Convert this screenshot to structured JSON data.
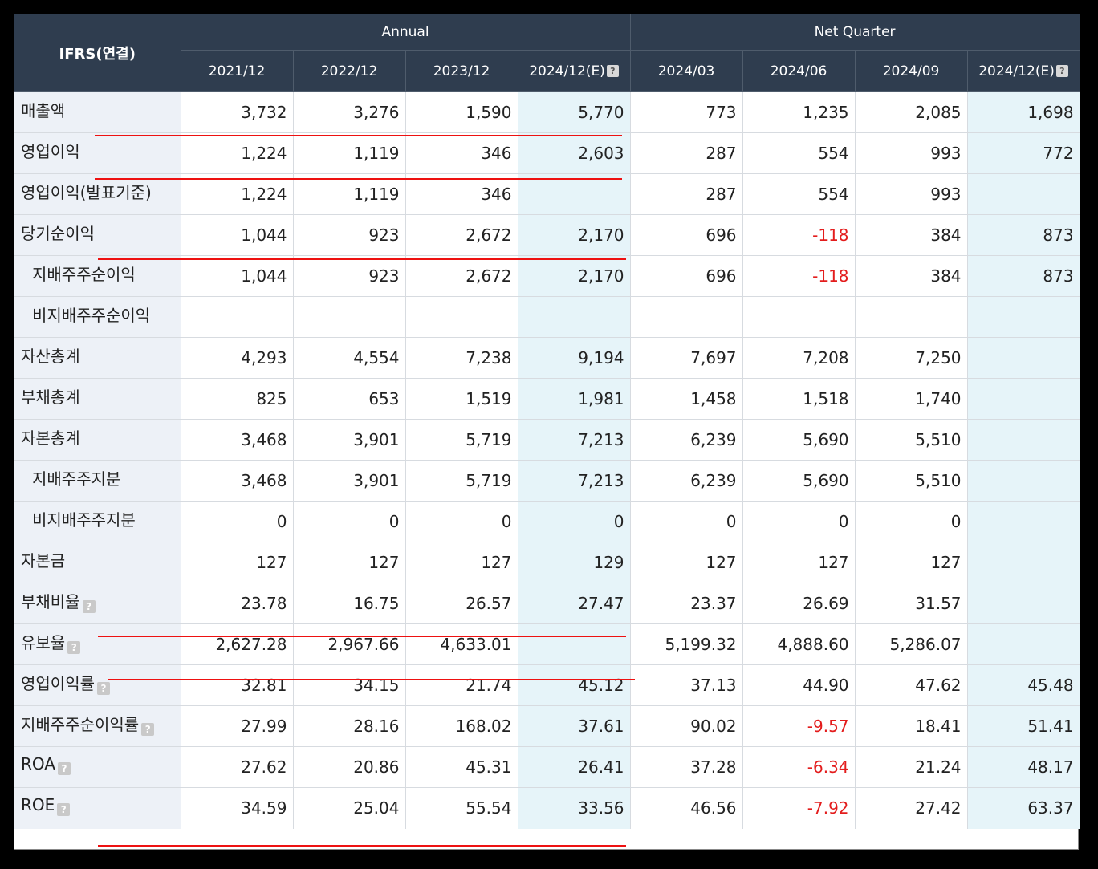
{
  "header": {
    "corner": "IFRS(연결)",
    "group_annual": "Annual",
    "group_quarter": "Net Quarter",
    "help_glyph": "?",
    "periods": [
      "2021/12",
      "2022/12",
      "2023/12",
      "2024/12(E)",
      "2024/03",
      "2024/06",
      "2024/09",
      "2024/12(E)"
    ]
  },
  "rows": [
    {
      "label": "매출액",
      "values": [
        "3,732",
        "3,276",
        "1,590",
        "5,770",
        "773",
        "1,235",
        "2,085",
        "1,698"
      ]
    },
    {
      "label": "영업이익",
      "values": [
        "1,224",
        "1,119",
        "346",
        "2,603",
        "287",
        "554",
        "993",
        "772"
      ]
    },
    {
      "label": "영업이익(발표기준)",
      "values": [
        "1,224",
        "1,119",
        "346",
        "",
        "287",
        "554",
        "993",
        ""
      ]
    },
    {
      "label": "당기순이익",
      "values": [
        "1,044",
        "923",
        "2,672",
        "2,170",
        "696",
        "-118",
        "384",
        "873"
      ]
    },
    {
      "label": "지배주주순이익",
      "values": [
        "1,044",
        "923",
        "2,672",
        "2,170",
        "696",
        "-118",
        "384",
        "873"
      ]
    },
    {
      "label": "비지배주주순이익",
      "values": [
        "",
        "",
        "",
        "",
        "",
        "",
        "",
        ""
      ]
    },
    {
      "label": "자산총계",
      "values": [
        "4,293",
        "4,554",
        "7,238",
        "9,194",
        "7,697",
        "7,208",
        "7,250",
        ""
      ]
    },
    {
      "label": "부채총계",
      "values": [
        "825",
        "653",
        "1,519",
        "1,981",
        "1,458",
        "1,518",
        "1,740",
        ""
      ]
    },
    {
      "label": "자본총계",
      "values": [
        "3,468",
        "3,901",
        "5,719",
        "7,213",
        "6,239",
        "5,690",
        "5,510",
        ""
      ]
    },
    {
      "label": "지배주주지분",
      "values": [
        "3,468",
        "3,901",
        "5,719",
        "7,213",
        "6,239",
        "5,690",
        "5,510",
        ""
      ]
    },
    {
      "label": "비지배주주지분",
      "values": [
        "0",
        "0",
        "0",
        "0",
        "0",
        "0",
        "0",
        ""
      ]
    },
    {
      "label": "자본금",
      "values": [
        "127",
        "127",
        "127",
        "129",
        "127",
        "127",
        "127",
        ""
      ]
    },
    {
      "label": "부채비율",
      "values": [
        "23.78",
        "16.75",
        "26.57",
        "27.47",
        "23.37",
        "26.69",
        "31.57",
        ""
      ]
    },
    {
      "label": "유보율",
      "values": [
        "2,627.28",
        "2,967.66",
        "4,633.01",
        "",
        "5,199.32",
        "4,888.60",
        "5,286.07",
        ""
      ]
    },
    {
      "label": "영업이익률",
      "values": [
        "32.81",
        "34.15",
        "21.74",
        "45.12",
        "37.13",
        "44.90",
        "47.62",
        "45.48"
      ]
    },
    {
      "label": "지배주주순이익률",
      "values": [
        "27.99",
        "28.16",
        "168.02",
        "37.61",
        "90.02",
        "-9.57",
        "18.41",
        "51.41"
      ]
    },
    {
      "label": "ROA",
      "values": [
        "27.62",
        "20.86",
        "45.31",
        "26.41",
        "37.28",
        "-6.34",
        "21.24",
        "48.17"
      ]
    },
    {
      "label": "ROE",
      "values": [
        "34.59",
        "25.04",
        "55.54",
        "33.56",
        "46.56",
        "-7.92",
        "27.42",
        "63.37"
      ]
    }
  ],
  "colors": {
    "header_bg": "#2f3d4f",
    "label_bg": "#edf1f7",
    "estimate_bg": "#e6f4f9",
    "negative": "#e31c1c",
    "underline": "#ee1111"
  }
}
